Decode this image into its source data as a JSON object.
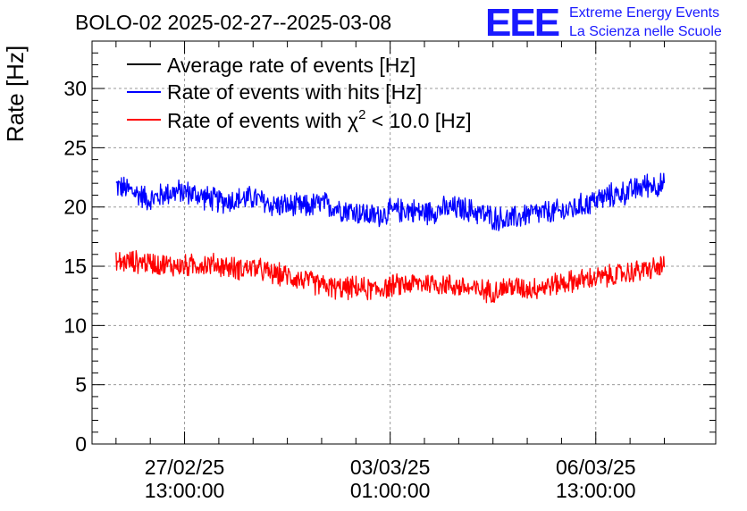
{
  "chart_data": {
    "type": "line",
    "title": "BOLO-02 2025-02-27--2025-03-08",
    "ylabel": "Rate [Hz]",
    "xlabel": "",
    "ylim": [
      0,
      34
    ],
    "yticks": [
      0,
      5,
      10,
      15,
      20,
      25,
      30
    ],
    "xticks": [
      {
        "pos": 1,
        "date": "27/02/25",
        "time": "13:00:00"
      },
      {
        "pos": 4,
        "date": "03/03/25",
        "time": "01:00:00"
      },
      {
        "pos": 7,
        "date": "06/03/25",
        "time": "13:00:00"
      }
    ],
    "xlim": [
      -0.35,
      8.75
    ],
    "grid": true,
    "legend_position": "top-left",
    "series": [
      {
        "name": "Average rate of events [Hz]",
        "color": "#000000",
        "x": [],
        "values": []
      },
      {
        "name": "Rate of events with hits [Hz]",
        "color": "#0000ff",
        "x_start": 0,
        "x_end": 8,
        "x": [
          0.0,
          0.25,
          0.5,
          0.75,
          1.0,
          1.25,
          1.5,
          1.75,
          2.0,
          2.25,
          2.5,
          2.75,
          3.0,
          3.25,
          3.5,
          3.75,
          4.0,
          4.25,
          4.5,
          4.75,
          5.0,
          5.25,
          5.5,
          5.75,
          6.0,
          6.25,
          6.5,
          6.75,
          7.0,
          7.25,
          7.5,
          7.75,
          8.0
        ],
        "values": [
          21.8,
          21.3,
          20.6,
          21.2,
          21.3,
          20.9,
          20.5,
          20.6,
          20.8,
          20.2,
          20.1,
          20.0,
          20.3,
          19.9,
          19.6,
          19.2,
          19.6,
          19.8,
          19.5,
          19.8,
          19.9,
          19.6,
          19.1,
          18.9,
          19.4,
          19.5,
          19.6,
          20.0,
          20.6,
          21.0,
          21.3,
          21.9,
          21.8
        ],
        "band": 1.2
      },
      {
        "name": "Rate of events with χ² < 10.0 [Hz]",
        "color": "#ff0000",
        "x_start": 0,
        "x_end": 8,
        "x": [
          0.0,
          0.25,
          0.5,
          0.75,
          1.0,
          1.25,
          1.5,
          1.75,
          2.0,
          2.25,
          2.5,
          2.75,
          3.0,
          3.25,
          3.5,
          3.75,
          4.0,
          4.25,
          4.5,
          4.75,
          5.0,
          5.25,
          5.5,
          5.75,
          6.0,
          6.25,
          6.5,
          6.75,
          7.0,
          7.25,
          7.5,
          7.75,
          8.0
        ],
        "values": [
          15.3,
          15.4,
          15.3,
          15.1,
          15.0,
          15.2,
          15.1,
          14.8,
          14.9,
          14.4,
          14.2,
          13.8,
          13.4,
          13.1,
          13.2,
          13.0,
          13.3,
          13.5,
          13.6,
          13.5,
          13.3,
          13.0,
          12.9,
          13.3,
          13.1,
          13.3,
          13.6,
          13.8,
          14.0,
          14.2,
          14.5,
          14.7,
          15.0
        ],
        "band": 1.1
      }
    ],
    "legend_labels": {
      "avg": "Average rate of events [Hz]",
      "hits": "Rate of events with hits [Hz]",
      "chi_pre": "Rate of events with χ",
      "chi_sup": "2",
      "chi_post": " < 10.0 [Hz]"
    }
  },
  "logo": {
    "mark": "EEE",
    "line1": "Extreme Energy Events",
    "line2": "La Scienza nelle Scuole",
    "color": "#1a1aff"
  }
}
